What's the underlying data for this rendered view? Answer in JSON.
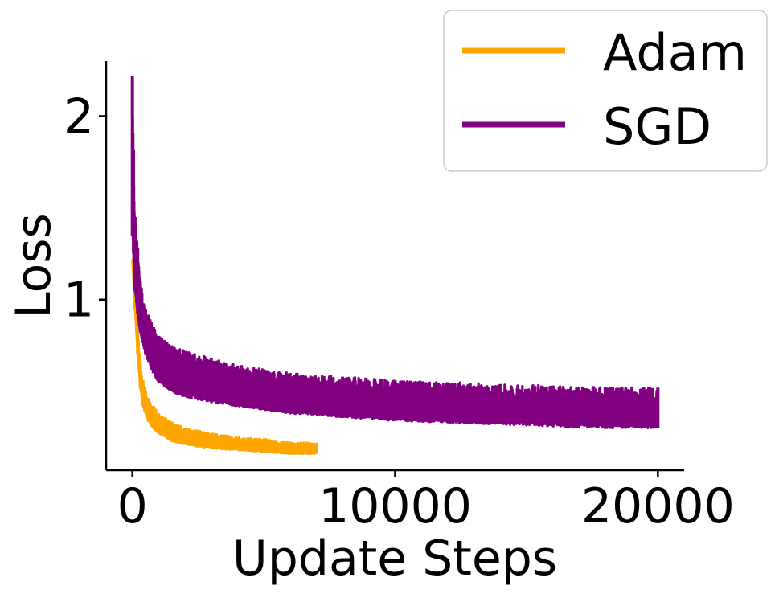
{
  "chart_data": {
    "type": "line",
    "xlabel": "Update Steps",
    "ylabel": "Loss",
    "xlim": [
      -1000,
      21000
    ],
    "ylim": [
      0.07,
      2.3
    ],
    "x_ticks": [
      0,
      10000,
      20000
    ],
    "x_tick_labels": [
      "0",
      "10000",
      "20000"
    ],
    "y_ticks": [
      1,
      2
    ],
    "y_tick_labels": [
      "1",
      "2"
    ],
    "grid": false,
    "legend_position": "top-right",
    "series": [
      {
        "name": "Adam",
        "color": "#FFA500",
        "x": [
          0,
          100,
          200,
          300,
          400,
          600,
          800,
          1000,
          1500,
          2000,
          3000,
          4000,
          5000,
          6000,
          7000
        ],
        "y_low": [
          1.22,
          0.95,
          0.7,
          0.52,
          0.42,
          0.34,
          0.3,
          0.27,
          0.23,
          0.21,
          0.19,
          0.18,
          0.17,
          0.16,
          0.16
        ],
        "y_high": [
          1.22,
          1.02,
          0.82,
          0.66,
          0.56,
          0.46,
          0.42,
          0.38,
          0.33,
          0.3,
          0.27,
          0.25,
          0.24,
          0.22,
          0.22
        ]
      },
      {
        "name": "SGD",
        "color": "#800080",
        "x": [
          0,
          100,
          200,
          300,
          500,
          800,
          1000,
          1500,
          2000,
          3000,
          4000,
          5000,
          6000,
          8000,
          10000,
          12000,
          14000,
          16000,
          18000,
          20000
        ],
        "y_low": [
          1.35,
          1.05,
          0.92,
          0.82,
          0.7,
          0.6,
          0.55,
          0.5,
          0.47,
          0.44,
          0.42,
          0.4,
          0.38,
          0.36,
          0.34,
          0.33,
          0.32,
          0.31,
          0.3,
          0.3
        ],
        "y_high": [
          2.22,
          1.45,
          1.28,
          1.1,
          0.95,
          0.85,
          0.8,
          0.75,
          0.72,
          0.68,
          0.64,
          0.62,
          0.6,
          0.58,
          0.56,
          0.55,
          0.54,
          0.53,
          0.52,
          0.52
        ]
      }
    ]
  }
}
